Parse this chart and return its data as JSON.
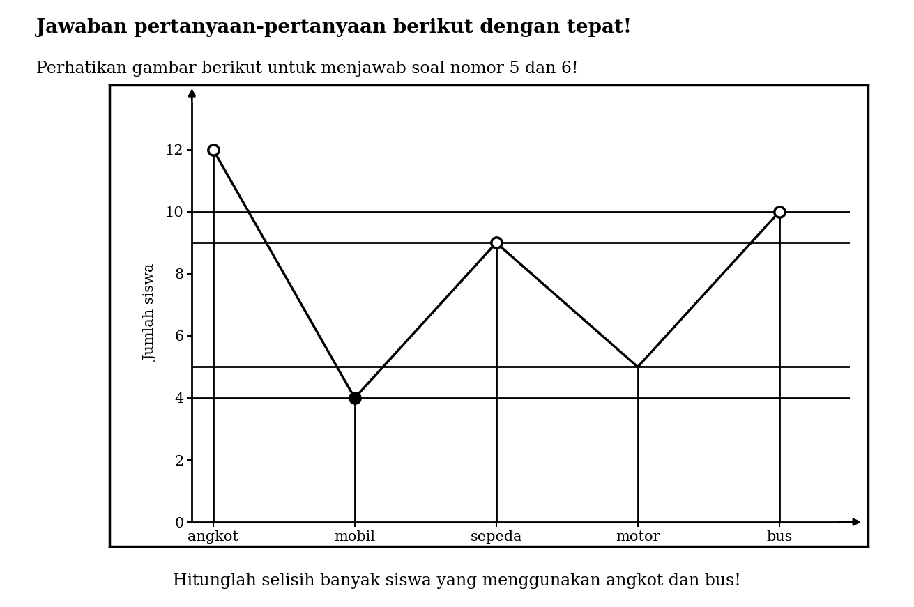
{
  "title_bold": "Jawaban pertanyaan-pertanyaan berikut dengan tepat!",
  "title_normal": "Perhatikan gambar berikut untuk menjawab soal nomor 5 dan 6!",
  "footer": "Hitunglah selisih banyak siswa yang menggunakan angkot dan bus!",
  "categories": [
    "angkot",
    "mobil",
    "sepeda",
    "motor",
    "bus"
  ],
  "values": [
    12,
    4,
    9,
    5,
    10
  ],
  "ylabel": "Jumlah siswa",
  "ylim": [
    0,
    13.5
  ],
  "yticks": [
    0,
    2,
    4,
    6,
    8,
    10,
    12
  ],
  "marker_types": [
    "open",
    "filled",
    "open",
    "none",
    "open"
  ],
  "grid_hlines": [
    4,
    5,
    9,
    10
  ],
  "line_color": "black",
  "background_color": "white",
  "box_color": "black",
  "title_fontsize": 20,
  "subtitle_fontsize": 17,
  "footer_fontsize": 17,
  "tick_fontsize": 15,
  "ylabel_fontsize": 15
}
